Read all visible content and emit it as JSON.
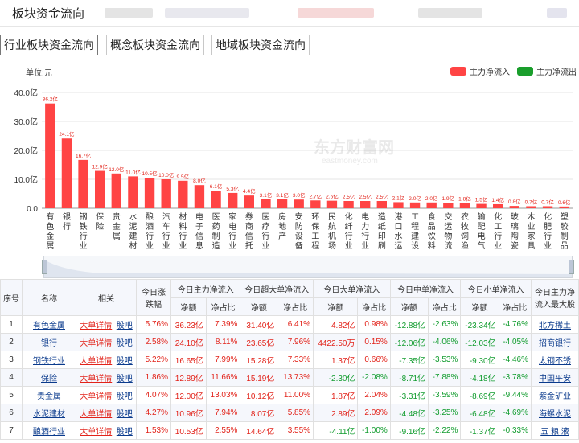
{
  "header": {
    "title": "板块资金流向"
  },
  "tabs": [
    {
      "label": "行业板块资金流向"
    },
    {
      "label": "概念板块资金流向"
    },
    {
      "label": "地域板块资金流向"
    }
  ],
  "unit_label": "单位:元",
  "legend": [
    {
      "label": "主力净流入",
      "color": "#ff4444"
    },
    {
      "label": "主力净流出",
      "color": "#1a9e2c"
    }
  ],
  "watermark": {
    "cn": "东方财富网",
    "en": "eastmoney.com"
  },
  "chart_data": {
    "type": "bar",
    "ylim": [
      0,
      40
    ],
    "yticks": [
      "0.0",
      "10.0亿",
      "20.0亿",
      "30.0亿",
      "40.0亿"
    ],
    "categories": [
      "有色金属",
      "银行",
      "钢铁行业",
      "保险",
      "贵金属",
      "水泥建材",
      "酿酒行业",
      "汽车行业",
      "材料行业",
      "电子信息",
      "医药制造",
      "家电行业",
      "券商信托",
      "医疗行业",
      "房地产",
      "安防设备",
      "环保工程",
      "民航机场",
      "化纤行业",
      "电力行业",
      "造纸印刷",
      "港口水运",
      "工程建设",
      "食品饮料",
      "交运物流",
      "农牧饲渔",
      "输配电气",
      "化工行业",
      "玻璃陶瓷",
      "木业家具",
      "化肥行业",
      "塑胶制品"
    ],
    "values": [
      36.2,
      24.1,
      16.7,
      12.9,
      12.0,
      11.0,
      10.5,
      10.0,
      9.5,
      8.0,
      6.1,
      5.3,
      4.4,
      3.1,
      3.1,
      3.0,
      2.7,
      2.6,
      2.5,
      2.5,
      2.5,
      2.1,
      2.0,
      2.0,
      1.9,
      1.8,
      1.5,
      1.4,
      0.8,
      0.7,
      0.7,
      0.6
    ],
    "labels": [
      "36.2亿",
      "24.1亿",
      "16.7亿",
      "12.9亿",
      "12.0亿",
      "11.0亿",
      "10.5亿",
      "10.0亿",
      "9.5亿",
      "8.0亿",
      "6.1亿",
      "5.3亿",
      "4.4亿",
      "3.1亿",
      "3.1亿",
      "3.0亿",
      "2.7亿",
      "2.6亿",
      "2.5亿",
      "2.5亿",
      "2.5亿",
      "2.1亿",
      "2.0亿",
      "2.0亿",
      "1.9亿",
      "1.8亿",
      "1.5亿",
      "1.4亿",
      "0.8亿",
      "0.7亿",
      "0.7亿",
      "0.6亿"
    ],
    "color": "#ff4444"
  },
  "table": {
    "headers": {
      "seq": "序号",
      "name": "名称",
      "related": "相关",
      "change": "今日涨跌幅",
      "main": "今日主力净流入",
      "super": "今日超大单净流入",
      "large": "今日大单净流入",
      "medium": "今日中单净流入",
      "small": "今日小单净流入",
      "top": "今日主力净流入最大股",
      "amount": "净额",
      "ratio": "净占比"
    },
    "rows": [
      [
        "1",
        "有色金属",
        "大单详情",
        "股吧",
        "5.76%",
        "36.23亿",
        "7.39%",
        "31.40亿",
        "6.41%",
        "4.82亿",
        "0.98%",
        "-12.88亿",
        "-2.63%",
        "-23.34亿",
        "-4.76%",
        "北方稀土"
      ],
      [
        "2",
        "银行",
        "大单详情",
        "股吧",
        "2.58%",
        "24.10亿",
        "8.11%",
        "23.65亿",
        "7.96%",
        "4422.50万",
        "0.15%",
        "-12.06亿",
        "-4.06%",
        "-12.03亿",
        "-4.05%",
        "招商银行"
      ],
      [
        "3",
        "钢铁行业",
        "大单详情",
        "股吧",
        "5.22%",
        "16.65亿",
        "7.99%",
        "15.28亿",
        "7.33%",
        "1.37亿",
        "0.66%",
        "-7.35亿",
        "-3.53%",
        "-9.30亿",
        "-4.46%",
        "太钢不锈"
      ],
      [
        "4",
        "保险",
        "大单详情",
        "股吧",
        "1.86%",
        "12.89亿",
        "11.66%",
        "15.19亿",
        "13.73%",
        "-2.30亿",
        "-2.08%",
        "-8.71亿",
        "-7.88%",
        "-4.18亿",
        "-3.78%",
        "中国平安"
      ],
      [
        "5",
        "贵金属",
        "大单详情",
        "股吧",
        "4.07%",
        "12.00亿",
        "13.03%",
        "10.12亿",
        "11.00%",
        "1.87亿",
        "2.04%",
        "-3.31亿",
        "-3.59%",
        "-8.69亿",
        "-9.44%",
        "紫金矿业"
      ],
      [
        "6",
        "水泥建材",
        "大单详情",
        "股吧",
        "4.27%",
        "10.96亿",
        "7.94%",
        "8.07亿",
        "5.85%",
        "2.89亿",
        "2.09%",
        "-4.48亿",
        "-3.25%",
        "-6.48亿",
        "-4.69%",
        "海螺水泥"
      ],
      [
        "7",
        "酿酒行业",
        "大单详情",
        "股吧",
        "1.53%",
        "10.53亿",
        "2.55%",
        "14.64亿",
        "3.55%",
        "-4.11亿",
        "-1.00%",
        "-9.16亿",
        "-2.22%",
        "-1.37亿",
        "-0.33%",
        "五 粮 液"
      ]
    ]
  }
}
